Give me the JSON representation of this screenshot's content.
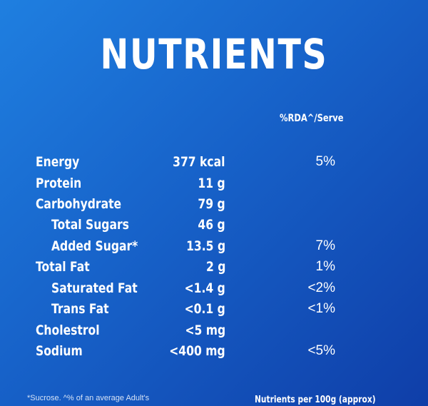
{
  "title": "NUTRIENTS",
  "column_header": "%RDA^/Serve",
  "rows": [
    {
      "name": "Energy",
      "amount": "377 kcal",
      "rda": "5%"
    },
    {
      "name": "Protein",
      "amount": "11 g",
      "rda": ""
    },
    {
      "name": "Carbohydrate",
      "amount": "79 g",
      "rda": ""
    },
    {
      "name": "Total Sugars",
      "amount": "46 g",
      "rda": ""
    },
    {
      "name": "Added Sugar*",
      "amount": "13.5 g",
      "rda": "7%"
    },
    {
      "name": "Total Fat",
      "amount": "2 g",
      "rda": "1%"
    },
    {
      "name": "Saturated Fat",
      "amount": "<1.4 g",
      "rda": "<2%"
    },
    {
      "name": "Trans Fat",
      "amount": "<0.1 g",
      "rda": "<1%"
    },
    {
      "name": "Cholestrol",
      "amount": "<5 mg",
      "rda": ""
    },
    {
      "name": "Sodium",
      "amount": "<400 mg",
      "rda": "<5%"
    }
  ],
  "footnote": "*Sucrose. ^% of an average Adult's",
  "footer_right": "Nutrients per 100g (approx)"
}
